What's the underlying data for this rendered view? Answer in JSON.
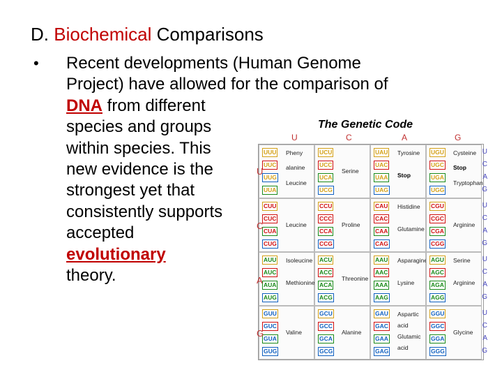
{
  "slide": {
    "title_prefix": "D. ",
    "title_accent": "Biochemical",
    "title_suffix": " Comparisons",
    "bullet_symbol": "•",
    "lines": {
      "l1": "Recent developments (Human Genome",
      "l2": "Project) have allowed for the comparison of",
      "l3_key": "DNA",
      "l3_rest": " from different",
      "l4": "species and groups",
      "l5": "within species.  This",
      "l6": "new evidence is the",
      "l7": "strongest yet that",
      "l8": "consistently supports",
      "l9": "accepted",
      "l10_key": "evolutionary",
      "l11": "theory."
    }
  },
  "figure": {
    "title": "The Genetic Code",
    "columns": [
      "U",
      "C",
      "A",
      "G"
    ],
    "rows": [
      "U",
      "C",
      "A",
      "G"
    ],
    "third_bases": [
      "U",
      "C",
      "A",
      "G"
    ],
    "cells": [
      [
        {
          "codons": [
            "UUU",
            "UUC",
            "UUG",
            "UUA"
          ],
          "labels": [
            "Pheny",
            "alanine",
            "Leucine"
          ]
        },
        {
          "codons": [
            "UCU",
            "UCC",
            "UCA",
            "UCG"
          ],
          "labels": [
            "Serine"
          ]
        },
        {
          "codons": [
            "UAU",
            "UAC",
            "UAA",
            "UAG"
          ],
          "labels": [
            "Tyrosine",
            "Stop"
          ]
        },
        {
          "codons": [
            "UGU",
            "UGC",
            "UGA",
            "UGG"
          ],
          "labels": [
            "Cysteine",
            "Stop",
            "Tryptophan"
          ]
        }
      ],
      [
        {
          "codons": [
            "CUU",
            "CUC",
            "CUA",
            "CUG"
          ],
          "labels": [
            "Leucine"
          ]
        },
        {
          "codons": [
            "CCU",
            "CCC",
            "CCA",
            "CCG"
          ],
          "labels": [
            "Proline"
          ]
        },
        {
          "codons": [
            "CAU",
            "CAC",
            "CAA",
            "CAG"
          ],
          "labels": [
            "Histidine",
            "Glutamine"
          ]
        },
        {
          "codons": [
            "CGU",
            "CGC",
            "CGA",
            "CGG"
          ],
          "labels": [
            "Arginine"
          ]
        }
      ],
      [
        {
          "codons": [
            "AUU",
            "AUC",
            "AUA",
            "AUG"
          ],
          "labels": [
            "Isoleucine",
            "Methionine"
          ]
        },
        {
          "codons": [
            "ACU",
            "ACC",
            "ACA",
            "ACG"
          ],
          "labels": [
            "Threonine"
          ]
        },
        {
          "codons": [
            "AAU",
            "AAC",
            "AAA",
            "AAG"
          ],
          "labels": [
            "Asparagine",
            "Lysine"
          ]
        },
        {
          "codons": [
            "AGU",
            "AGC",
            "AGA",
            "AGG"
          ],
          "labels": [
            "Serine",
            "Arginine"
          ]
        }
      ],
      [
        {
          "codons": [
            "GUU",
            "GUC",
            "GUA",
            "GUG"
          ],
          "labels": [
            "Valine"
          ]
        },
        {
          "codons": [
            "GCU",
            "GCC",
            "GCA",
            "GCG"
          ],
          "labels": [
            "Alanine"
          ]
        },
        {
          "codons": [
            "GAU",
            "GAC",
            "GAA",
            "GAG"
          ],
          "labels": [
            "Aspartic",
            "acid",
            "Glutamic",
            "acid"
          ]
        },
        {
          "codons": [
            "GGU",
            "GGC",
            "GGA",
            "GGG"
          ],
          "labels": [
            "Glycine"
          ]
        }
      ]
    ],
    "colors": {
      "U": "#d4a017",
      "C": "#d01010",
      "A": "#1a8a1a",
      "G": "#1060c0",
      "header": "#c03030",
      "stop": "#000000"
    }
  }
}
